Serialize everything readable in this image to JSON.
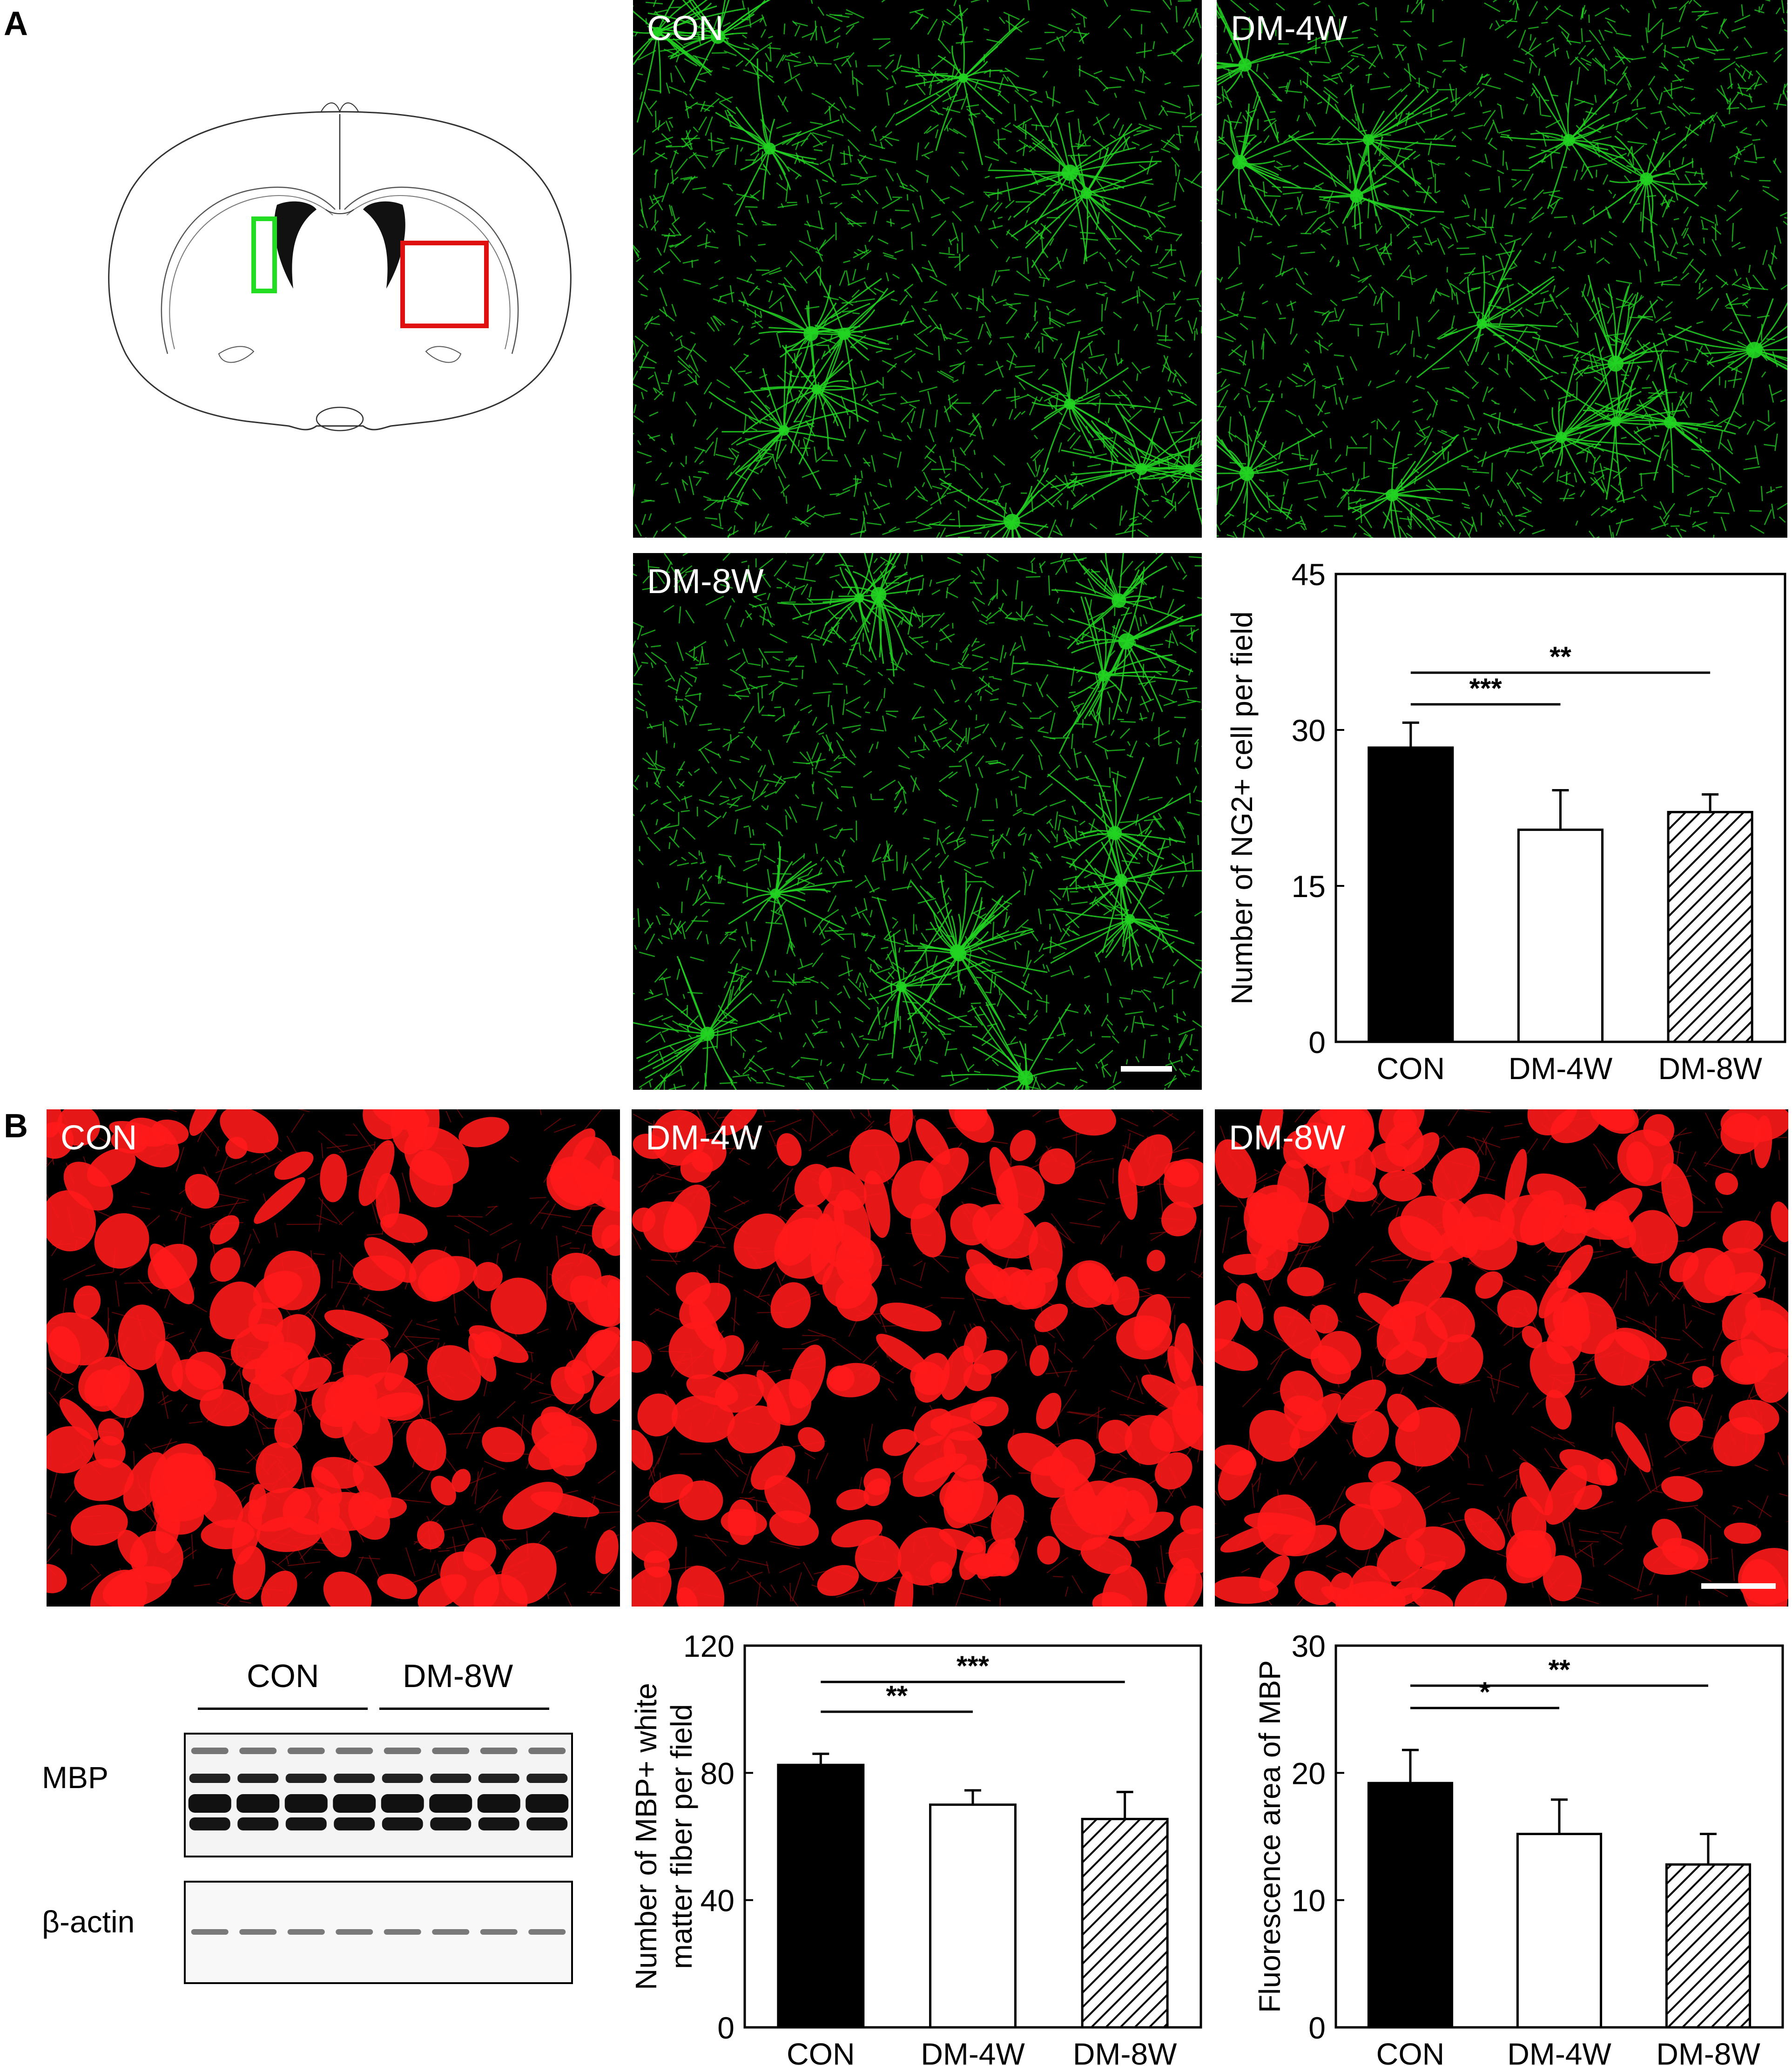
{
  "panels": {
    "a_label": "A",
    "b_label": "B"
  },
  "panel_a": {
    "images": [
      {
        "label": "CON",
        "color": "#22d422"
      },
      {
        "label": "DM-4W",
        "color": "#22d422"
      },
      {
        "label": "DM-8W",
        "color": "#22d422"
      }
    ],
    "schematic_box_colors": {
      "left": "#22dd22",
      "right": "#e01010"
    }
  },
  "panel_b": {
    "images": [
      {
        "label": "CON",
        "color": "#ff1a1a"
      },
      {
        "label": "DM-4W",
        "color": "#ff1a1a"
      },
      {
        "label": "DM-8W",
        "color": "#ff1a1a"
      }
    ],
    "blot": {
      "group_labels": [
        "CON",
        "DM-8W"
      ],
      "row_labels": [
        "MBP",
        "β-actin"
      ]
    }
  },
  "chart_data": [
    {
      "id": "ng2",
      "type": "bar",
      "categories": [
        "CON",
        "DM-4W",
        "DM-8W"
      ],
      "values": [
        28.3,
        20.4,
        22.1
      ],
      "errors": [
        2.4,
        3.8,
        1.7
      ],
      "fills": [
        "solid-black",
        "white",
        "hatched"
      ],
      "ylabel": "Number of NG2+ cell per field",
      "ylim": [
        0,
        45
      ],
      "yticks": [
        "0",
        "15",
        "30",
        "45"
      ],
      "significance": [
        {
          "from": "CON",
          "to": "DM-4W",
          "label": "***"
        },
        {
          "from": "CON",
          "to": "DM-8W",
          "label": "**"
        }
      ]
    },
    {
      "id": "mbp-fibers",
      "type": "bar",
      "categories": [
        "CON",
        "DM-4W",
        "DM-8W"
      ],
      "values": [
        82.5,
        70.0,
        65.5
      ],
      "errors": [
        3.5,
        4.5,
        8.5
      ],
      "fills": [
        "solid-black",
        "white",
        "hatched"
      ],
      "ylabel_lines": [
        "Number of MBP+ white",
        "matter fiber per field"
      ],
      "ylim": [
        0,
        120
      ],
      "yticks": [
        "0",
        "40",
        "80",
        "120"
      ],
      "significance": [
        {
          "from": "CON",
          "to": "DM-4W",
          "label": "**"
        },
        {
          "from": "CON",
          "to": "DM-8W",
          "label": "***"
        }
      ]
    },
    {
      "id": "mbp-area",
      "type": "bar",
      "categories": [
        "CON",
        "DM-4W",
        "DM-8W"
      ],
      "values": [
        19.2,
        15.2,
        12.8
      ],
      "errors": [
        2.6,
        2.7,
        2.4
      ],
      "fills": [
        "solid-black",
        "white",
        "hatched"
      ],
      "ylabel": "Fluorescence area of MBP",
      "ylim": [
        0,
        30
      ],
      "yticks": [
        "0",
        "10",
        "20",
        "30"
      ],
      "significance": [
        {
          "from": "CON",
          "to": "DM-4W",
          "label": "*"
        },
        {
          "from": "CON",
          "to": "DM-8W",
          "label": "**"
        }
      ]
    }
  ]
}
